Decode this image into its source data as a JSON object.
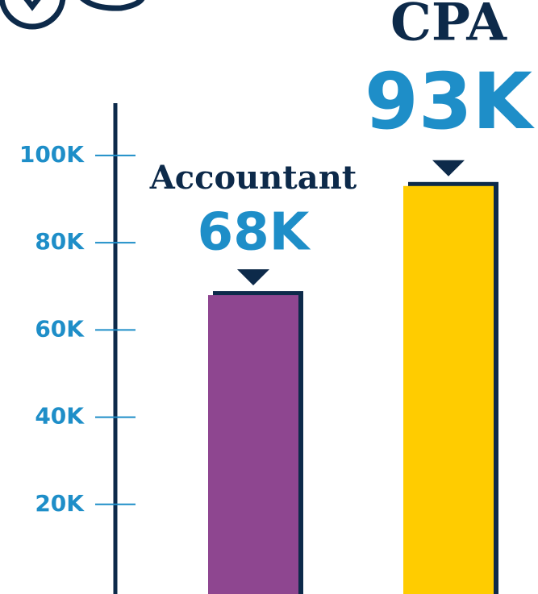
{
  "chart_data": {
    "type": "bar",
    "categories": [
      "Accountant",
      "CPA"
    ],
    "values": [
      68000,
      93000
    ],
    "value_labels": [
      "68K",
      "93K"
    ],
    "colors": [
      "#8e4690",
      "#ffcc00"
    ],
    "ylim": [
      0,
      112000
    ],
    "yticks": [
      {
        "value": 20000,
        "label": "20K"
      },
      {
        "value": 40000,
        "label": "40K"
      },
      {
        "value": 60000,
        "label": "60K"
      },
      {
        "value": 80000,
        "label": "80K"
      },
      {
        "value": 100000,
        "label": "100K"
      }
    ]
  }
}
